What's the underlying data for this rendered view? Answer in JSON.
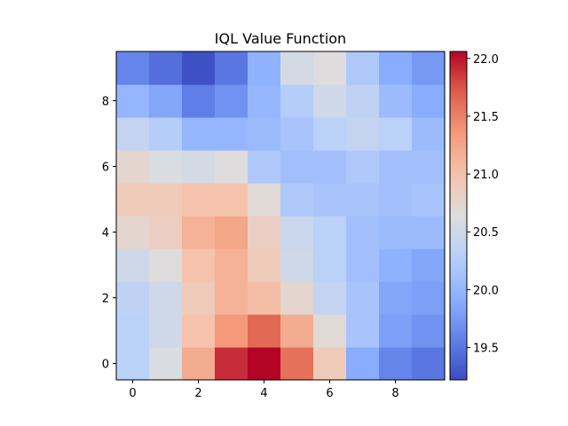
{
  "chart_data": {
    "type": "heatmap",
    "title": "IQL Value Function",
    "xlabel": "",
    "ylabel": "",
    "x_ticks": [
      0,
      2,
      4,
      6,
      8
    ],
    "y_ticks": [
      0,
      2,
      4,
      6,
      8
    ],
    "x_range": [
      -0.5,
      9.5
    ],
    "y_range": [
      -0.5,
      9.5
    ],
    "origin": "lower",
    "colormap": "coolwarm",
    "vmin": 19.22,
    "vmax": 22.06,
    "colorbar_ticks": [
      19.5,
      20.0,
      20.5,
      21.0,
      21.5,
      22.0
    ],
    "colorbar_tick_labels": [
      "19.5",
      "20.0",
      "20.5",
      "21.0",
      "21.5",
      "22.0"
    ],
    "grid": false,
    "values": [
      [
        20.3,
        20.6,
        21.2,
        21.9,
        22.06,
        21.6,
        20.9,
        19.9,
        19.6,
        19.5
      ],
      [
        20.3,
        20.5,
        21.0,
        21.35,
        21.65,
        21.2,
        20.7,
        20.15,
        19.8,
        19.7
      ],
      [
        20.35,
        20.5,
        20.9,
        21.15,
        21.05,
        20.75,
        20.4,
        20.15,
        19.85,
        19.8
      ],
      [
        20.5,
        20.65,
        21.0,
        21.15,
        20.9,
        20.5,
        20.3,
        20.1,
        19.95,
        19.85
      ],
      [
        20.75,
        20.85,
        21.15,
        21.25,
        20.85,
        20.45,
        20.3,
        20.1,
        20.05,
        20.05
      ],
      [
        20.9,
        20.9,
        21.0,
        21.0,
        20.7,
        20.2,
        20.15,
        20.15,
        20.1,
        20.15
      ],
      [
        20.75,
        20.6,
        20.55,
        20.65,
        20.2,
        20.1,
        20.1,
        20.2,
        20.1,
        20.1
      ],
      [
        20.4,
        20.25,
        20.0,
        20.0,
        20.05,
        20.15,
        20.3,
        20.4,
        20.3,
        20.05
      ],
      [
        20.0,
        19.85,
        19.55,
        19.7,
        20.0,
        20.25,
        20.5,
        20.35,
        20.05,
        19.9
      ],
      [
        19.6,
        19.45,
        19.25,
        19.5,
        19.95,
        20.55,
        20.65,
        20.2,
        19.9,
        19.75
      ]
    ]
  }
}
